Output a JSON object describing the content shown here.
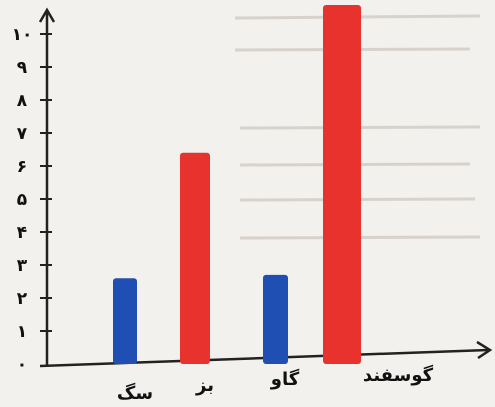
{
  "chart_data": {
    "type": "bar",
    "categories": [
      "سگ",
      "بز",
      "گاو",
      "گوسفند"
    ],
    "values": [
      2.6,
      6.4,
      2.7,
      11
    ],
    "bar_colors": [
      "#1f4fb3",
      "#e8322d",
      "#1f4fb3",
      "#e8322d"
    ],
    "ytick_labels": [
      "۱۰",
      "۹",
      "۸",
      "۷",
      "۶",
      "۵",
      "۴",
      "۳",
      "۲",
      "۱",
      "۰"
    ],
    "ylim": [
      0,
      11
    ],
    "title": "",
    "xlabel": "",
    "ylabel": "",
    "grid": false
  }
}
